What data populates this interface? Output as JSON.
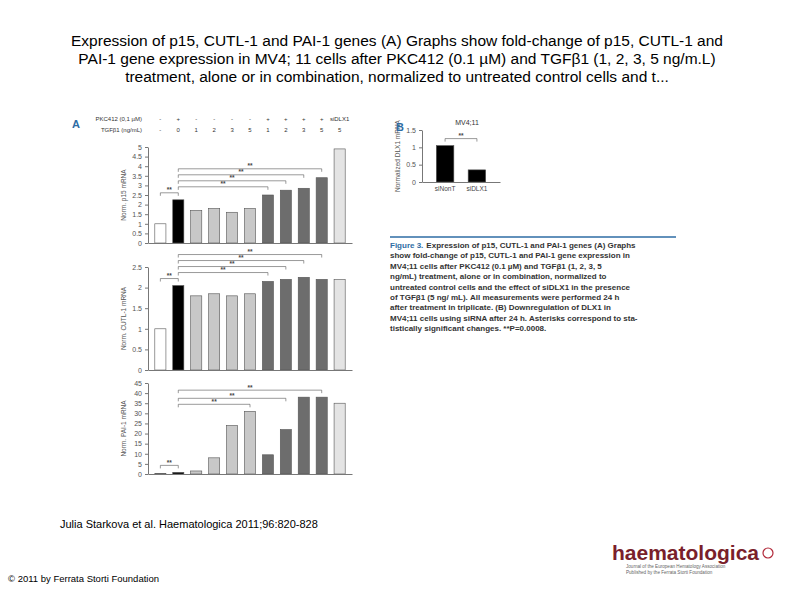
{
  "title_lines": [
    "Expression of p15, CUTL-1 and PAI-1 genes (A) Graphs show fold-change of p15, CUTL-1 and",
    "PAI-1 gene expression in MV4; 11 cells after PKC412 (0.1 µM) and TGFβ1 (1, 2, 3, 5 ng/m.L)",
    "treatment, alone or in combination, normalized to untreated control cells and t..."
  ],
  "panel_a": {
    "label": "A",
    "rows": [
      {
        "label": "PKC412 (0,1 µM)",
        "cells": [
          "-",
          "+",
          "-",
          "-",
          "-",
          "-",
          "+",
          "+",
          "+",
          "+"
        ]
      },
      {
        "label": "TGFβ1 (ng/mL)",
        "cells": [
          "-",
          "0",
          "1",
          "2",
          "3",
          "5",
          "1",
          "2",
          "3",
          "5",
          "5"
        ]
      }
    ],
    "extra_column_label": "siDLX1"
  },
  "panel_b": {
    "label": "B"
  },
  "caption": {
    "label": "Figure 3.",
    "lines": [
      "Expression of p15, CUTL-1 and PAI-1 genes (A) Graphs",
      "show fold-change of p15, CUTL-1 and PAI-1 gene expression in",
      "MV4;11 cells after PKC412 (0.1 µM) and TGFβ1 (1, 2, 3, 5",
      "ng/mL) treatment, alone or in combination, normalized to",
      "untreated control cells and the effect of siDLX1 in the presence",
      "of TGFβ1 (5 ng/ mL). All measurements were performed 24 h",
      "after treatment in triplicate. (B) Downregulation of DLX1 in",
      "MV4;11 cells using siRNA after 24 h. Asterisks correspond to sta-",
      "tistically significant changes. **P=0.0008."
    ]
  },
  "citation": "Julia Starkova et al. Haematologica 2011;96:820-828",
  "copyright": "© 2011 by Ferrata Storti Foundation",
  "logo": {
    "name": "haematologica",
    "tagline": [
      "Journal of the European Hematology Association",
      "Published by the Ferrata Storti Foundation"
    ]
  },
  "chart_data": [
    {
      "type": "bar",
      "y_label": "Norm. p15 mRNA",
      "categories": [
        null,
        null,
        null,
        null,
        null,
        null,
        null,
        null,
        null,
        null,
        null
      ],
      "values": [
        1,
        2.25,
        1.7,
        1.8,
        1.6,
        1.8,
        2.5,
        2.75,
        2.85,
        3.4,
        4.9
      ],
      "colors": [
        "#ffffff",
        "#000000",
        "#c8c8c8",
        "#c8c8c8",
        "#c8c8c8",
        "#c8c8c8",
        "#6d6d6d",
        "#6d6d6d",
        "#6d6d6d",
        "#6d6d6d",
        "#e4e4e4"
      ],
      "ylim": [
        0,
        5
      ],
      "yticks": [
        0,
        0.5,
        1,
        1.5,
        2,
        2.5,
        3,
        3.5,
        4,
        4.5,
        5
      ],
      "tick_labels": "y",
      "significance": [
        {
          "text": "**",
          "from": 0,
          "to": 1
        },
        {
          "text": "**",
          "from": 1,
          "to": 6
        },
        {
          "text": "**",
          "from": 1,
          "to": 7
        },
        {
          "text": "**",
          "from": 1,
          "to": 8
        },
        {
          "text": "**",
          "from": 1,
          "to": 9
        }
      ]
    },
    {
      "type": "bar",
      "y_label": "Norm. CUTL-1 mRNA",
      "categories": [
        null,
        null,
        null,
        null,
        null,
        null,
        null,
        null,
        null,
        null,
        null
      ],
      "values": [
        1,
        2.05,
        1.8,
        1.85,
        1.8,
        1.85,
        2.15,
        2.2,
        2.25,
        2.2,
        2.2
      ],
      "colors": [
        "#ffffff",
        "#000000",
        "#c8c8c8",
        "#c8c8c8",
        "#c8c8c8",
        "#c8c8c8",
        "#6d6d6d",
        "#6d6d6d",
        "#6d6d6d",
        "#6d6d6d",
        "#e4e4e4"
      ],
      "ylim": [
        0,
        2.5
      ],
      "yticks": [
        0,
        0.5,
        1,
        1.5,
        2,
        2.5
      ],
      "tick_labels": "y",
      "significance": [
        {
          "text": "**",
          "from": 0,
          "to": 1
        },
        {
          "text": "**",
          "from": 1,
          "to": 6
        },
        {
          "text": "**",
          "from": 1,
          "to": 7
        },
        {
          "text": "**",
          "from": 1,
          "to": 8
        },
        {
          "text": "**",
          "from": 1,
          "to": 9
        }
      ]
    },
    {
      "type": "bar",
      "y_label": "Norm. PAI-1 mRNA",
      "categories": [
        null,
        null,
        null,
        null,
        null,
        null,
        null,
        null,
        null,
        null,
        null
      ],
      "values": [
        0.3,
        0.8,
        1.5,
        8,
        24,
        31,
        9.5,
        22,
        38,
        38,
        35
      ],
      "colors": [
        "#ffffff",
        "#000000",
        "#c8c8c8",
        "#c8c8c8",
        "#c8c8c8",
        "#c8c8c8",
        "#6d6d6d",
        "#6d6d6d",
        "#6d6d6d",
        "#6d6d6d",
        "#e4e4e4"
      ],
      "ylim": [
        0,
        45
      ],
      "yticks": [
        0,
        5,
        10,
        15,
        20,
        25,
        30,
        35,
        40,
        45
      ],
      "tick_labels": "y",
      "significance": [
        {
          "text": "**",
          "from": 0,
          "to": 1
        },
        {
          "text": "**",
          "from": 1,
          "to": 5
        },
        {
          "text": "**",
          "from": 1,
          "to": 7
        },
        {
          "text": "**",
          "from": 1,
          "to": 9
        }
      ]
    },
    {
      "type": "bar",
      "title": "MV4;11",
      "y_label": "Normalized DLX1 mRNA",
      "categories": [
        "siNonT",
        "siDLX1"
      ],
      "values": [
        1.05,
        0.35
      ],
      "color": "#000000",
      "ylim": [
        0,
        1.5
      ],
      "yticks": [
        0,
        0.5,
        1,
        1.5
      ],
      "significance": [
        {
          "text": "**",
          "from": 0,
          "to": 1
        }
      ]
    }
  ]
}
